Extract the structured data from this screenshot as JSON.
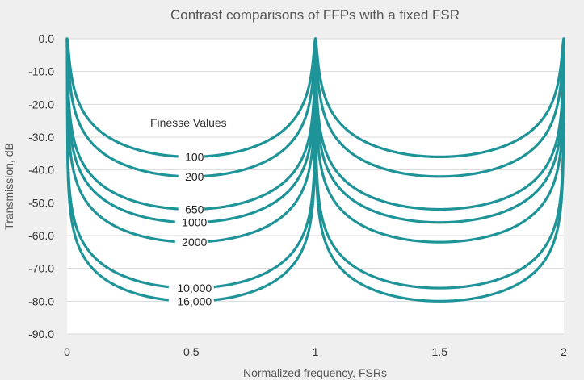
{
  "chart_data": {
    "type": "line",
    "title": "Contrast comparisons of FFPs with a fixed FSR",
    "xlabel": "Normalized frequency, FSRs",
    "ylabel": "Transmission, dB",
    "xlim": [
      0,
      2
    ],
    "ylim": [
      -90,
      0
    ],
    "x_ticks": [
      0,
      0.5,
      1,
      1.5,
      2
    ],
    "x_tick_labels": [
      "0",
      "0.5",
      "1",
      "1.5",
      "2"
    ],
    "y_ticks": [
      0,
      -10,
      -20,
      -30,
      -40,
      -50,
      -60,
      -70,
      -80,
      -90
    ],
    "y_tick_labels": [
      "0.0",
      "-10.0",
      "-20.0",
      "-30.0",
      "-40.0",
      "-50.0",
      "-60.0",
      "-70.0",
      "-80.0",
      "-90.0"
    ],
    "grid": true,
    "legend_title": "Finesse Values",
    "line_color": "#1e9499",
    "series": [
      {
        "name": "100",
        "label": "100",
        "min_db": -36
      },
      {
        "name": "200",
        "label": "200",
        "min_db": -42
      },
      {
        "name": "650",
        "label": "650",
        "min_db": -52
      },
      {
        "name": "1000",
        "label": "1000",
        "min_db": -56
      },
      {
        "name": "2000",
        "label": "2000",
        "min_db": -62
      },
      {
        "name": "10,000",
        "label": "10,000",
        "min_db": -76
      },
      {
        "name": "16,000",
        "label": "16,000",
        "min_db": -80
      }
    ]
  }
}
